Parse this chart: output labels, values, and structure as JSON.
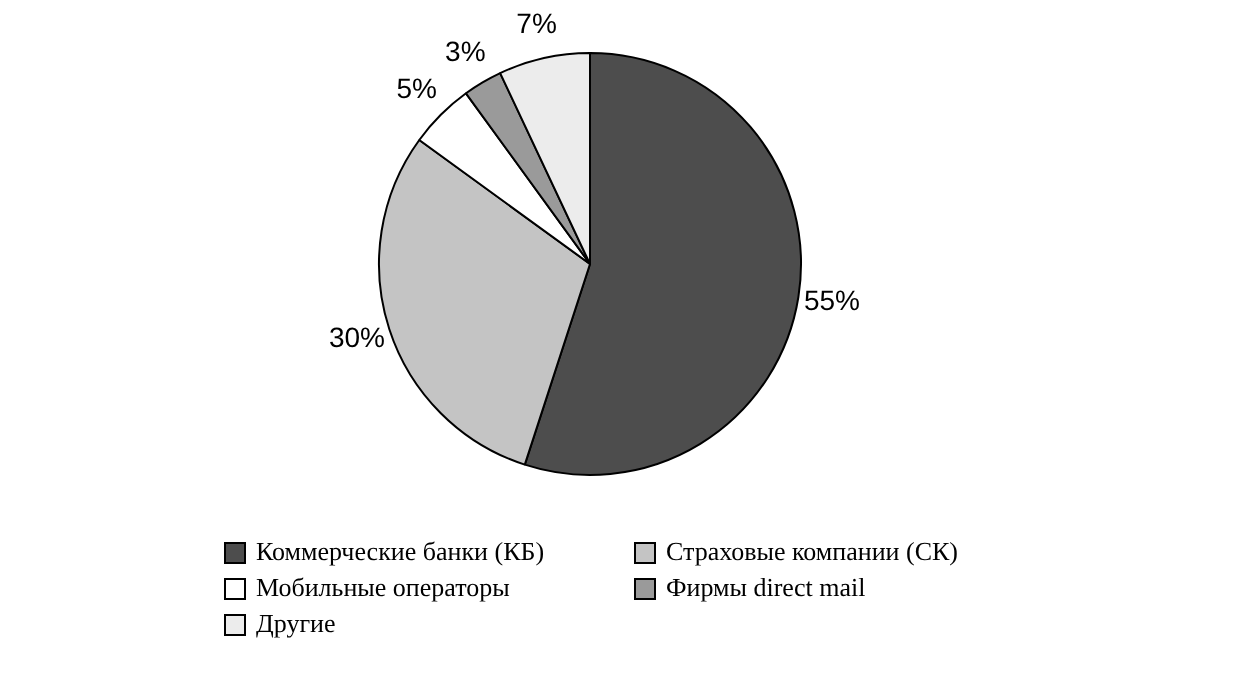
{
  "chart_data": {
    "type": "pie",
    "categories": [
      "Коммерческие банки (КБ)",
      "Страховые компании (СК)",
      "Мобильные операторы",
      "Фирмы direct mail",
      "Другие"
    ],
    "values": [
      55,
      30,
      5,
      3,
      7
    ],
    "value_labels": [
      "55%",
      "30%",
      "5%",
      "3%",
      "7%"
    ],
    "colors": [
      "#4d4d4d",
      "#c4c4c4",
      "#ffffff",
      "#9a9a9a",
      "#ececec"
    ],
    "legend": "bottom"
  }
}
